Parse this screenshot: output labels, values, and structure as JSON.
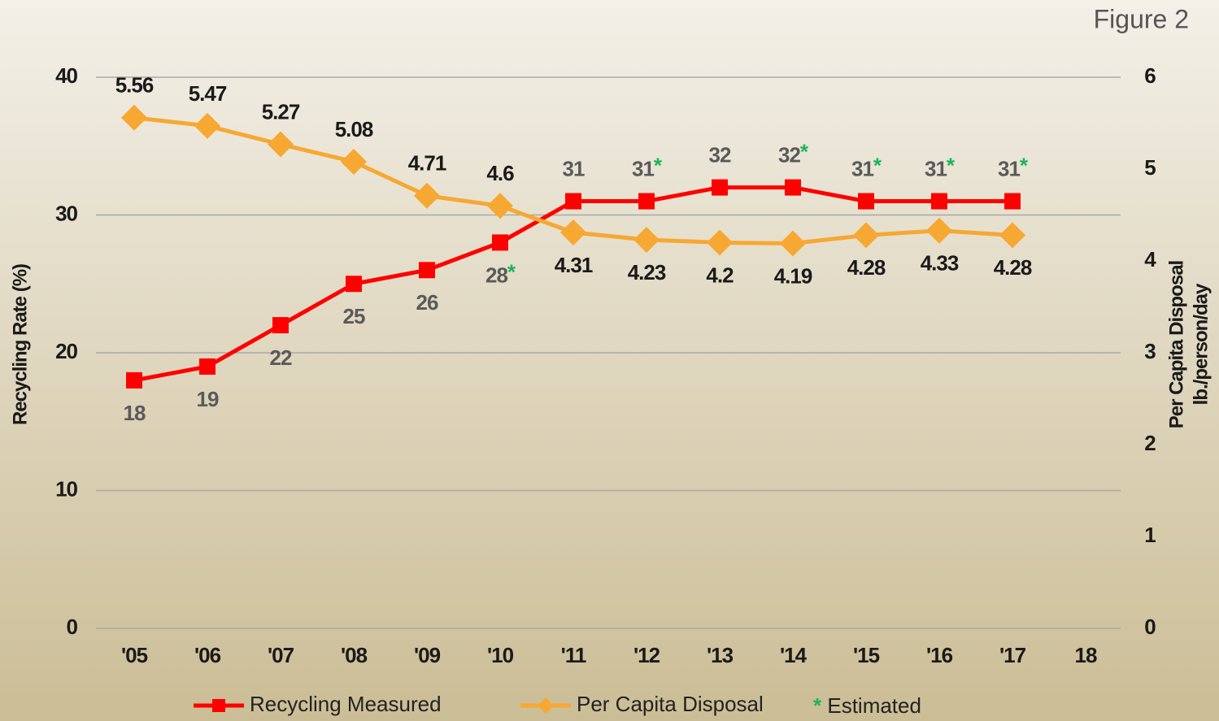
{
  "chart_data": {
    "type": "line",
    "title": "Figure 2",
    "y_label": "Recycling Rate (%)",
    "y2_label": [
      "Per Capita Disposal",
      "lb./person/day"
    ],
    "categories": [
      "'05",
      "'06",
      "'07",
      "'08",
      "'09",
      "'10",
      "'11",
      "'12",
      "'13",
      "'14",
      "'15",
      "'16",
      "'17",
      "18"
    ],
    "ylim": [
      0,
      40
    ],
    "yticks": [
      0,
      10,
      20,
      30,
      40
    ],
    "y2lim": [
      0,
      6
    ],
    "y2ticks": [
      0,
      1,
      2,
      3,
      4,
      5,
      6
    ],
    "grid": true,
    "series": [
      {
        "name": "Recycling Measured",
        "color": "#ff0000",
        "marker": "square",
        "label_color": "#5a5a5a",
        "values": [
          18,
          19,
          22,
          25,
          26,
          28,
          31,
          31,
          32,
          32,
          31,
          31,
          31,
          null
        ],
        "value_labels": [
          "18",
          "19",
          "22",
          "25",
          "26",
          "28*",
          "31",
          "31*",
          "32",
          "32*",
          "31*",
          "31*",
          "31*",
          null
        ]
      },
      {
        "name": "Per Capita Disposal",
        "color": "#f7a833",
        "marker": "diamond",
        "axis": "y2",
        "label_color": "#1a1a1a",
        "values": [
          5.56,
          5.47,
          5.27,
          5.08,
          4.71,
          4.6,
          4.31,
          4.23,
          4.2,
          4.19,
          4.28,
          4.33,
          4.28,
          null
        ]
      }
    ],
    "legend_note": "* Estimated",
    "note_color": "#1fb35a"
  }
}
